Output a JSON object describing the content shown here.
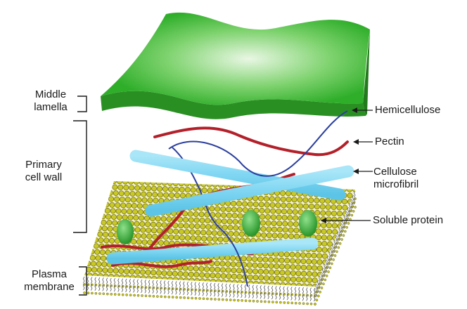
{
  "labels": {
    "middle_lamella": [
      "Middle",
      "lamella"
    ],
    "primary_cell_wall": [
      "Primary",
      "cell wall"
    ],
    "plasma_membrane": [
      "Plasma",
      "membrane"
    ],
    "hemicellulose": "Hemicellulose",
    "pectin": "Pectin",
    "cellulose_microfibril": [
      "Cellulose",
      "microfibril"
    ],
    "soluble_protein": "Soluble protein"
  },
  "colors": {
    "middle_lamella_top": "#3fbf3a",
    "middle_lamella_highlight": "#e9f7e4",
    "middle_lamella_side": "#2a8f22",
    "membrane_head": "#c8c826",
    "membrane_head_stroke": "#6e6a10",
    "hemicellulose": "#2b3f9e",
    "pectin": "#b3202a",
    "cellulose": "#7fd6f2",
    "protein": "#2fa82f",
    "text": "#1a1a1a"
  }
}
